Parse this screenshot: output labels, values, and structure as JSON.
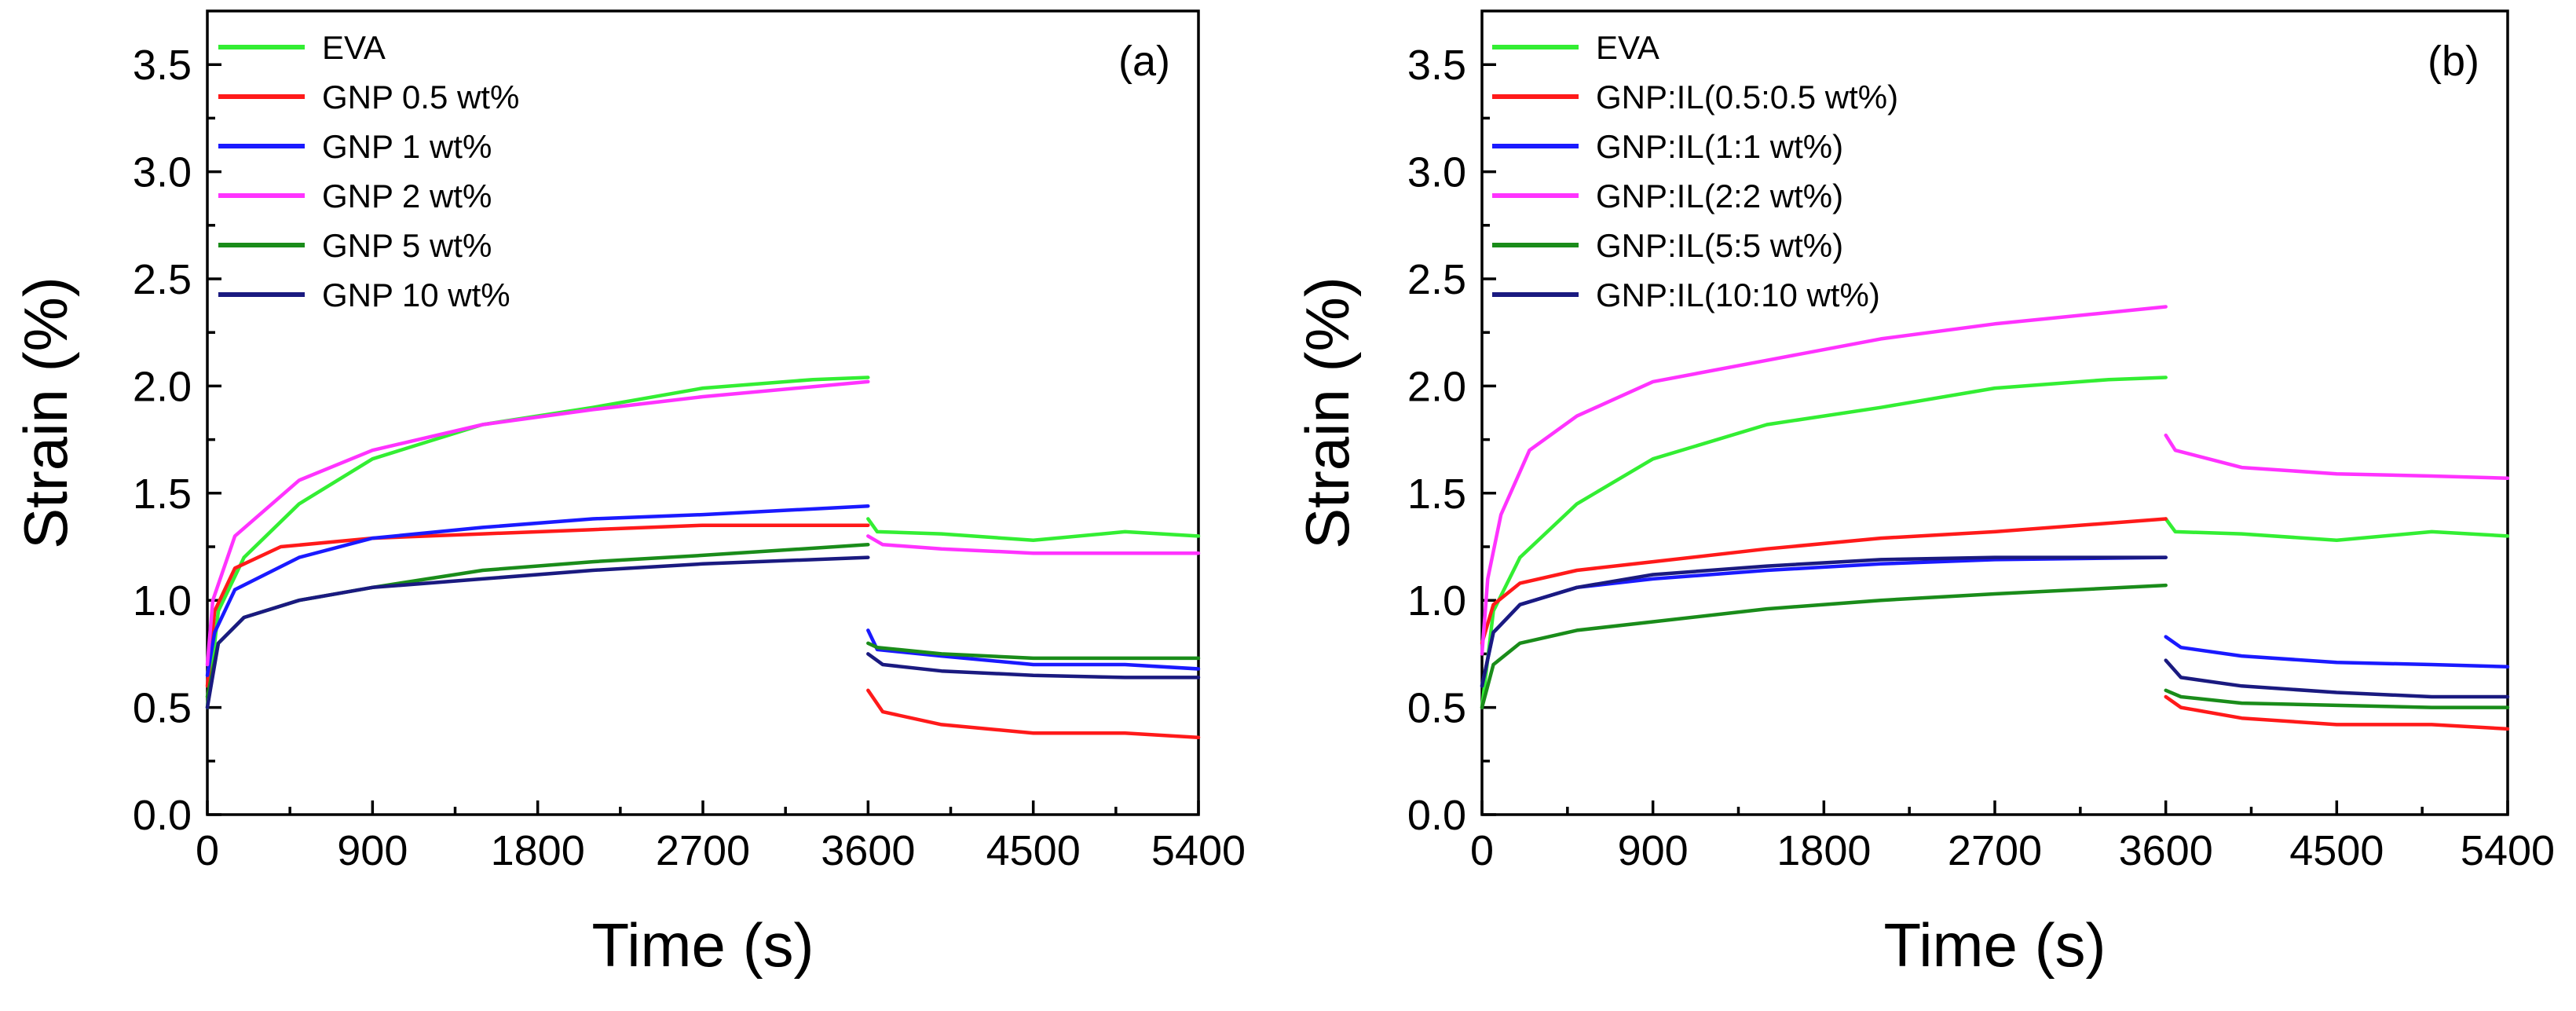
{
  "chart_data": [
    {
      "type": "line",
      "panel_label": "(a)",
      "xlabel": "Time (s)",
      "ylabel": "Strain (%)",
      "xlim": [
        0,
        5400
      ],
      "ylim": [
        0,
        3.75
      ],
      "xticks": [
        0,
        900,
        1800,
        2700,
        3600,
        4500,
        5400
      ],
      "xtick_labels": [
        "0",
        "900",
        "1800",
        "2700",
        "3600",
        "4500",
        "5400"
      ],
      "yticks": [
        0,
        0.5,
        1.0,
        1.5,
        2.0,
        2.5,
        3.0,
        3.5
      ],
      "ytick_labels": [
        "0.0",
        "0.5",
        "1.0",
        "1.5",
        "2.0",
        "2.5",
        "3.0",
        "3.5"
      ],
      "legend_position": "top-left",
      "series": [
        {
          "name": "EVA",
          "color": "#33ee33",
          "creep": [
            [
              0,
              0.5
            ],
            [
              60,
              0.95
            ],
            [
              200,
              1.2
            ],
            [
              500,
              1.45
            ],
            [
              900,
              1.66
            ],
            [
              1500,
              1.82
            ],
            [
              2100,
              1.9
            ],
            [
              2700,
              1.99
            ],
            [
              3300,
              2.03
            ],
            [
              3600,
              2.04
            ]
          ],
          "recovery": [
            [
              3600,
              1.38
            ],
            [
              3650,
              1.32
            ],
            [
              4000,
              1.31
            ],
            [
              4500,
              1.28
            ],
            [
              5000,
              1.32
            ],
            [
              5400,
              1.3
            ]
          ]
        },
        {
          "name": "GNP 0.5 wt%",
          "color": "#ff1a1a",
          "creep": [
            [
              0,
              0.6
            ],
            [
              40,
              0.95
            ],
            [
              150,
              1.15
            ],
            [
              400,
              1.25
            ],
            [
              900,
              1.29
            ],
            [
              1500,
              1.31
            ],
            [
              2100,
              1.33
            ],
            [
              2700,
              1.35
            ],
            [
              3600,
              1.35
            ]
          ],
          "recovery": [
            [
              3600,
              0.58
            ],
            [
              3680,
              0.48
            ],
            [
              4000,
              0.42
            ],
            [
              4500,
              0.38
            ],
            [
              5000,
              0.38
            ],
            [
              5400,
              0.36
            ]
          ]
        },
        {
          "name": "GNP 1 wt%",
          "color": "#1a1aff",
          "creep": [
            [
              0,
              0.65
            ],
            [
              40,
              0.85
            ],
            [
              150,
              1.05
            ],
            [
              500,
              1.2
            ],
            [
              900,
              1.29
            ],
            [
              1500,
              1.34
            ],
            [
              2100,
              1.38
            ],
            [
              2700,
              1.4
            ],
            [
              3600,
              1.44
            ]
          ],
          "recovery": [
            [
              3600,
              0.86
            ],
            [
              3650,
              0.77
            ],
            [
              4000,
              0.74
            ],
            [
              4500,
              0.7
            ],
            [
              5000,
              0.7
            ],
            [
              5400,
              0.68
            ]
          ]
        },
        {
          "name": "GNP 2 wt%",
          "color": "#ff33ff",
          "creep": [
            [
              0,
              0.7
            ],
            [
              30,
              1.0
            ],
            [
              150,
              1.3
            ],
            [
              500,
              1.56
            ],
            [
              900,
              1.7
            ],
            [
              1500,
              1.82
            ],
            [
              2100,
              1.89
            ],
            [
              2700,
              1.95
            ],
            [
              3600,
              2.02
            ]
          ],
          "recovery": [
            [
              3600,
              1.3
            ],
            [
              3680,
              1.26
            ],
            [
              4000,
              1.24
            ],
            [
              4500,
              1.22
            ],
            [
              5000,
              1.22
            ],
            [
              5400,
              1.22
            ]
          ]
        },
        {
          "name": "GNP 5 wt%",
          "color": "#1a8c1a",
          "creep": [
            [
              0,
              0.55
            ],
            [
              60,
              0.8
            ],
            [
              200,
              0.92
            ],
            [
              500,
              1.0
            ],
            [
              900,
              1.06
            ],
            [
              1500,
              1.14
            ],
            [
              2100,
              1.18
            ],
            [
              2700,
              1.21
            ],
            [
              3600,
              1.26
            ]
          ],
          "recovery": [
            [
              3600,
              0.8
            ],
            [
              3650,
              0.78
            ],
            [
              4000,
              0.75
            ],
            [
              4500,
              0.73
            ],
            [
              5000,
              0.73
            ],
            [
              5400,
              0.73
            ]
          ]
        },
        {
          "name": "GNP 10 wt%",
          "color": "#1a1a80",
          "creep": [
            [
              0,
              0.5
            ],
            [
              60,
              0.8
            ],
            [
              200,
              0.92
            ],
            [
              500,
              1.0
            ],
            [
              900,
              1.06
            ],
            [
              1500,
              1.1
            ],
            [
              2100,
              1.14
            ],
            [
              2700,
              1.17
            ],
            [
              3600,
              1.2
            ]
          ],
          "recovery": [
            [
              3600,
              0.75
            ],
            [
              3680,
              0.7
            ],
            [
              4000,
              0.67
            ],
            [
              4500,
              0.65
            ],
            [
              5000,
              0.64
            ],
            [
              5400,
              0.64
            ]
          ]
        }
      ]
    },
    {
      "type": "line",
      "panel_label": "(b)",
      "xlabel": "Time (s)",
      "ylabel": "Strain (%)",
      "xlim": [
        0,
        5400
      ],
      "ylim": [
        0,
        3.75
      ],
      "xticks": [
        0,
        900,
        1800,
        2700,
        3600,
        4500,
        5400
      ],
      "xtick_labels": [
        "0",
        "900",
        "1800",
        "2700",
        "3600",
        "4500",
        "5400"
      ],
      "yticks": [
        0,
        0.5,
        1.0,
        1.5,
        2.0,
        2.5,
        3.0,
        3.5
      ],
      "ytick_labels": [
        "0.0",
        "0.5",
        "1.0",
        "1.5",
        "2.0",
        "2.5",
        "3.0",
        "3.5"
      ],
      "legend_position": "top-left",
      "series": [
        {
          "name": "EVA",
          "color": "#33ee33",
          "creep": [
            [
              0,
              0.5
            ],
            [
              60,
              0.95
            ],
            [
              200,
              1.2
            ],
            [
              500,
              1.45
            ],
            [
              900,
              1.66
            ],
            [
              1500,
              1.82
            ],
            [
              2100,
              1.9
            ],
            [
              2700,
              1.99
            ],
            [
              3300,
              2.03
            ],
            [
              3600,
              2.04
            ]
          ],
          "recovery": [
            [
              3600,
              1.38
            ],
            [
              3650,
              1.32
            ],
            [
              4000,
              1.31
            ],
            [
              4500,
              1.28
            ],
            [
              5000,
              1.32
            ],
            [
              5400,
              1.3
            ]
          ]
        },
        {
          "name": "GNP:IL(0.5:0.5 wt%)",
          "color": "#ff1a1a",
          "creep": [
            [
              0,
              0.8
            ],
            [
              60,
              0.98
            ],
            [
              200,
              1.08
            ],
            [
              500,
              1.14
            ],
            [
              900,
              1.18
            ],
            [
              1500,
              1.24
            ],
            [
              2100,
              1.29
            ],
            [
              2700,
              1.32
            ],
            [
              3600,
              1.38
            ]
          ],
          "recovery": [
            [
              3600,
              0.55
            ],
            [
              3680,
              0.5
            ],
            [
              4000,
              0.45
            ],
            [
              4500,
              0.42
            ],
            [
              5000,
              0.42
            ],
            [
              5400,
              0.4
            ]
          ]
        },
        {
          "name": "GNP:IL(1:1 wt%)",
          "color": "#1a1aff",
          "creep": [
            [
              0,
              0.6
            ],
            [
              60,
              0.85
            ],
            [
              200,
              0.98
            ],
            [
              500,
              1.06
            ],
            [
              900,
              1.1
            ],
            [
              1500,
              1.14
            ],
            [
              2100,
              1.17
            ],
            [
              2700,
              1.19
            ],
            [
              3600,
              1.2
            ]
          ],
          "recovery": [
            [
              3600,
              0.83
            ],
            [
              3680,
              0.78
            ],
            [
              4000,
              0.74
            ],
            [
              4500,
              0.71
            ],
            [
              5000,
              0.7
            ],
            [
              5400,
              0.69
            ]
          ]
        },
        {
          "name": "GNP:IL(2:2 wt%)",
          "color": "#ff33ff",
          "creep": [
            [
              0,
              0.75
            ],
            [
              30,
              1.1
            ],
            [
              100,
              1.4
            ],
            [
              250,
              1.7
            ],
            [
              500,
              1.86
            ],
            [
              900,
              2.02
            ],
            [
              1500,
              2.12
            ],
            [
              2100,
              2.22
            ],
            [
              2700,
              2.29
            ],
            [
              3600,
              2.37
            ]
          ],
          "recovery": [
            [
              3600,
              1.77
            ],
            [
              3650,
              1.7
            ],
            [
              4000,
              1.62
            ],
            [
              4500,
              1.59
            ],
            [
              5000,
              1.58
            ],
            [
              5400,
              1.57
            ]
          ]
        },
        {
          "name": "GNP:IL(5:5 wt%)",
          "color": "#1a8c1a",
          "creep": [
            [
              0,
              0.5
            ],
            [
              60,
              0.7
            ],
            [
              200,
              0.8
            ],
            [
              500,
              0.86
            ],
            [
              900,
              0.9
            ],
            [
              1500,
              0.96
            ],
            [
              2100,
              1.0
            ],
            [
              2700,
              1.03
            ],
            [
              3600,
              1.07
            ]
          ],
          "recovery": [
            [
              3600,
              0.58
            ],
            [
              3680,
              0.55
            ],
            [
              4000,
              0.52
            ],
            [
              4500,
              0.51
            ],
            [
              5000,
              0.5
            ],
            [
              5400,
              0.5
            ]
          ]
        },
        {
          "name": "GNP:IL(10:10 wt%)",
          "color": "#1a1a80",
          "creep": [
            [
              0,
              0.6
            ],
            [
              60,
              0.85
            ],
            [
              200,
              0.98
            ],
            [
              500,
              1.06
            ],
            [
              900,
              1.12
            ],
            [
              1500,
              1.16
            ],
            [
              2100,
              1.19
            ],
            [
              2700,
              1.2
            ],
            [
              3600,
              1.2
            ]
          ],
          "recovery": [
            [
              3600,
              0.72
            ],
            [
              3680,
              0.64
            ],
            [
              4000,
              0.6
            ],
            [
              4500,
              0.57
            ],
            [
              5000,
              0.55
            ],
            [
              5400,
              0.55
            ]
          ]
        }
      ]
    }
  ]
}
